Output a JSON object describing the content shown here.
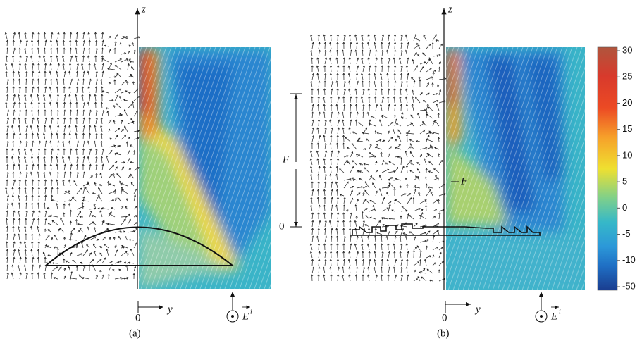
{
  "panels": [
    {
      "label": "(a)",
      "z_axis": "z",
      "y_axis": "y",
      "origin": "0",
      "incident": {
        "symbol": "E",
        "superscript": "i"
      }
    },
    {
      "label": "(b)",
      "z_axis": "z",
      "y_axis": "y",
      "origin": "0",
      "incident": {
        "symbol": "E",
        "superscript": "i"
      },
      "focal_length": "F",
      "focal_origin": "0",
      "focal_point": "F′"
    }
  ],
  "colorbar": {
    "ticks": [
      30,
      25,
      20,
      15,
      10,
      5,
      0,
      -5,
      -10,
      -50
    ]
  }
}
